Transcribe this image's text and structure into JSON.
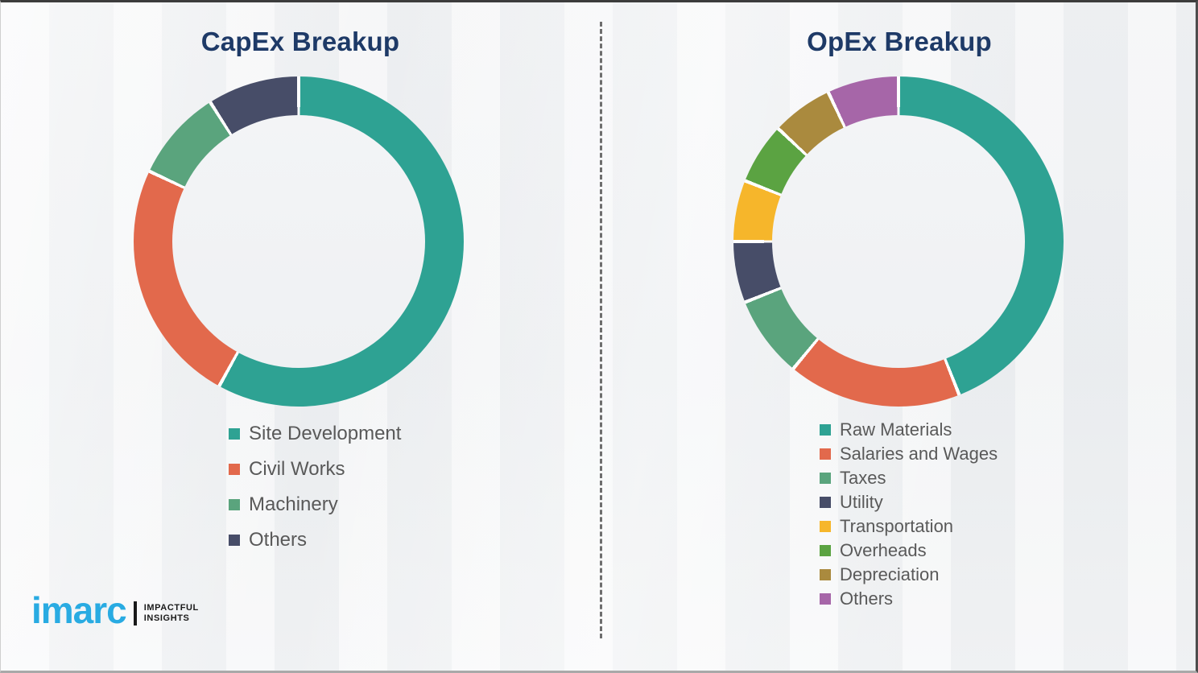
{
  "titles": {
    "capex": "CapEx Breakup",
    "opex": "OpEx Breakup"
  },
  "style_colors": {
    "title_text": "#1e3a67",
    "legend_text": "#595959",
    "divider": "#6e6e6e",
    "segment_separator": "#ffffff"
  },
  "chart_data": [
    {
      "type": "pie",
      "subtype": "donut",
      "title": "CapEx Breakup",
      "labels": [
        "Site Development",
        "Civil Works",
        "Machinery",
        "Others"
      ],
      "values": [
        58,
        24,
        9,
        9
      ],
      "unit": "percent",
      "colors": [
        "#2ea293",
        "#e2694c",
        "#5aa47d",
        "#474d68"
      ],
      "hole_ratio": 0.765,
      "start_angle_deg": 0,
      "direction": "clockwise",
      "legend_position": "below-left",
      "data_labels_shown": false
    },
    {
      "type": "pie",
      "subtype": "donut",
      "title": "OpEx Breakup",
      "labels": [
        "Raw Materials",
        "Salaries and Wages",
        "Taxes",
        "Utility",
        "Transportation",
        "Overheads",
        "Depreciation",
        "Others"
      ],
      "values": [
        44,
        17,
        8,
        6,
        6,
        6,
        6,
        7
      ],
      "unit": "percent",
      "colors": [
        "#2ea293",
        "#e2694c",
        "#5aa47d",
        "#474d68",
        "#f6b62b",
        "#5ba342",
        "#aa8a3e",
        "#a666a8"
      ],
      "hole_ratio": 0.765,
      "start_angle_deg": 0,
      "direction": "clockwise",
      "legend_position": "below-left",
      "data_labels_shown": false
    }
  ],
  "logo": {
    "brand": "imarc",
    "brand_color": "#29abe2",
    "tagline_line1": "IMPACTFUL",
    "tagline_line2": "INSIGHTS"
  }
}
